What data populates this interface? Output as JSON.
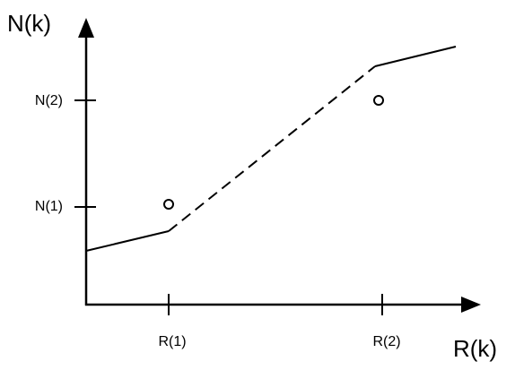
{
  "diagram": {
    "y_axis_label": "N(k)",
    "x_axis_label": "R(k)",
    "y_ticks": [
      "N(1)",
      "N(2)"
    ],
    "x_ticks": [
      "R(1)",
      "R(2)"
    ]
  }
}
